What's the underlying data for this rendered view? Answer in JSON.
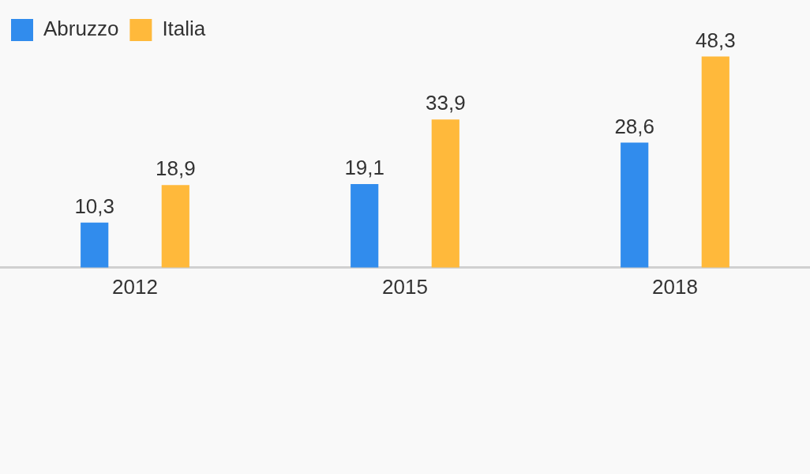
{
  "chart_data": {
    "type": "bar",
    "categories": [
      "2012",
      "2015",
      "2018"
    ],
    "series": [
      {
        "name": "Abruzzo",
        "color": "#318ced",
        "values": [
          10.3,
          19.1,
          28.6
        ],
        "value_labels": [
          "10,3",
          "19,1",
          "28,6"
        ]
      },
      {
        "name": "Italia",
        "color": "#ffb93b",
        "values": [
          18.9,
          33.9,
          48.3
        ],
        "value_labels": [
          "18,9",
          "33,9",
          "48,3"
        ]
      }
    ],
    "legend": "top left",
    "grid": false
  }
}
